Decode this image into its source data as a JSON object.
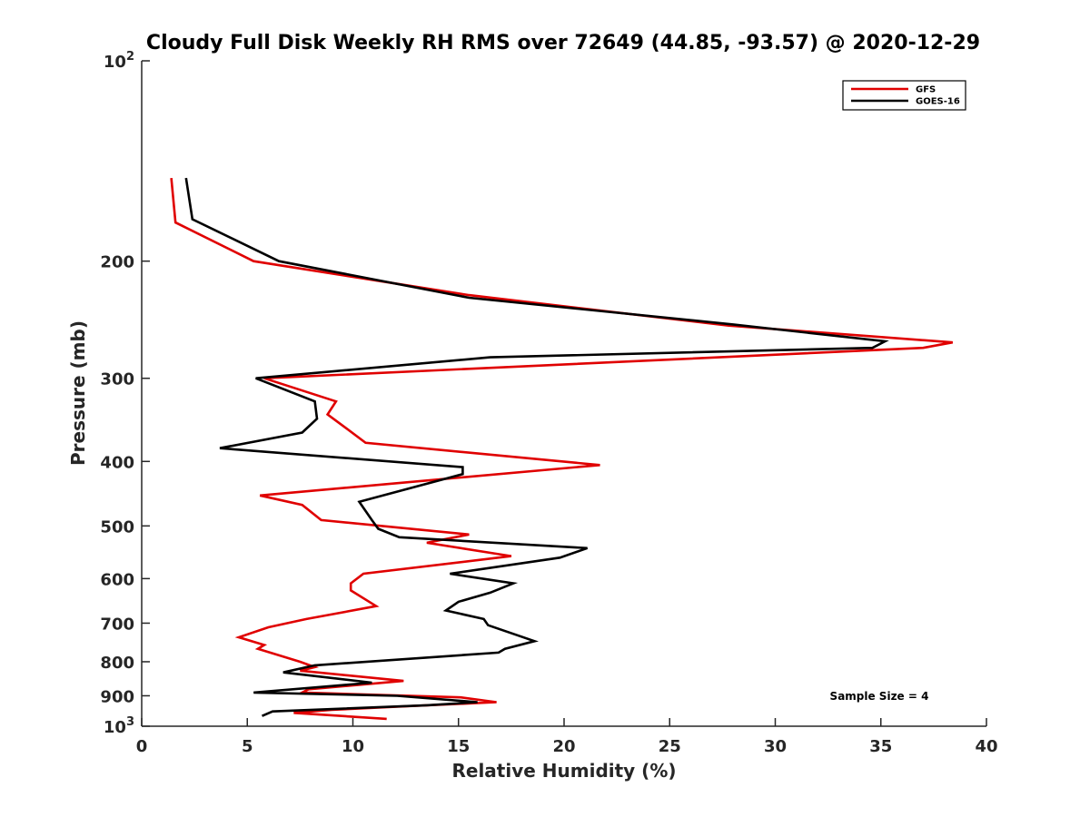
{
  "chart_data": {
    "type": "line",
    "title": "Cloudy Full Disk Weekly RH RMS over 72649 (44.85, -93.57) @ 2020-12-29",
    "xlabel": "Relative Humidity (%)",
    "ylabel": "Pressure (mb)",
    "xlim": [
      0,
      40
    ],
    "ylim": [
      100,
      1000
    ],
    "y_scale": "log",
    "y_reversed": true,
    "x_ticks": [
      "0",
      "5",
      "10",
      "15",
      "20",
      "25",
      "30",
      "35",
      "40"
    ],
    "y_ticks": [
      {
        "value": 100,
        "base": "10",
        "exp": "2"
      },
      {
        "value": 200,
        "label": "200"
      },
      {
        "value": 300,
        "label": "300"
      },
      {
        "value": 400,
        "label": "400"
      },
      {
        "value": 500,
        "label": "500"
      },
      {
        "value": 600,
        "label": "600"
      },
      {
        "value": 700,
        "label": "700"
      },
      {
        "value": 800,
        "label": "800"
      },
      {
        "value": 900,
        "label": "900"
      },
      {
        "value": 1000,
        "base": "10",
        "exp": "3"
      }
    ],
    "legend_position": "top-right",
    "grid": false,
    "annotation": "Sample Size = 4",
    "series": [
      {
        "name": "GFS",
        "color": "#e00000",
        "points": [
          [
            1.4,
            150
          ],
          [
            1.6,
            175
          ],
          [
            5.3,
            200
          ],
          [
            15.5,
            225
          ],
          [
            27.8,
            250
          ],
          [
            38.4,
            265
          ],
          [
            37.0,
            270
          ],
          [
            5.8,
            300
          ],
          [
            9.2,
            325
          ],
          [
            8.8,
            340
          ],
          [
            9.6,
            355
          ],
          [
            10.6,
            375
          ],
          [
            21.7,
            405
          ],
          [
            5.6,
            450
          ],
          [
            7.6,
            465
          ],
          [
            8.5,
            490
          ],
          [
            15.5,
            515
          ],
          [
            13.5,
            530
          ],
          [
            17.5,
            555
          ],
          [
            10.5,
            590
          ],
          [
            9.9,
            610
          ],
          [
            9.9,
            625
          ],
          [
            11.1,
            660
          ],
          [
            7.8,
            690
          ],
          [
            6.0,
            710
          ],
          [
            4.6,
            735
          ],
          [
            5.8,
            755
          ],
          [
            5.5,
            765
          ],
          [
            7.5,
            800
          ],
          [
            8.2,
            815
          ],
          [
            7.5,
            825
          ],
          [
            12.4,
            855
          ],
          [
            7.9,
            880
          ],
          [
            7.6,
            890
          ],
          [
            15.1,
            905
          ],
          [
            16.8,
            920
          ],
          [
            12.0,
            935
          ],
          [
            9.0,
            945
          ],
          [
            7.2,
            955
          ],
          [
            11.6,
            975
          ]
        ]
      },
      {
        "name": "GOES-16",
        "color": "#000000",
        "points": [
          [
            2.1,
            150
          ],
          [
            2.4,
            173
          ],
          [
            6.5,
            200
          ],
          [
            15.5,
            227
          ],
          [
            28.0,
            249
          ],
          [
            35.2,
            264
          ],
          [
            34.6,
            270
          ],
          [
            16.5,
            279
          ],
          [
            5.4,
            300
          ],
          [
            8.2,
            325
          ],
          [
            8.3,
            345
          ],
          [
            7.6,
            362
          ],
          [
            3.7,
            382
          ],
          [
            15.2,
            408
          ],
          [
            15.2,
            418
          ],
          [
            10.3,
            460
          ],
          [
            10.9,
            490
          ],
          [
            11.2,
            505
          ],
          [
            12.2,
            520
          ],
          [
            21.1,
            540
          ],
          [
            19.8,
            558
          ],
          [
            14.6,
            590
          ],
          [
            17.6,
            610
          ],
          [
            16.5,
            630
          ],
          [
            15.0,
            650
          ],
          [
            14.4,
            670
          ],
          [
            16.2,
            690
          ],
          [
            16.4,
            705
          ],
          [
            18.6,
            745
          ],
          [
            17.2,
            765
          ],
          [
            16.9,
            775
          ],
          [
            8.2,
            810
          ],
          [
            6.7,
            830
          ],
          [
            10.9,
            860
          ],
          [
            5.3,
            890
          ],
          [
            12.1,
            900
          ],
          [
            15.9,
            920
          ],
          [
            13.5,
            930
          ],
          [
            6.2,
            950
          ],
          [
            5.7,
            965
          ]
        ]
      }
    ]
  }
}
